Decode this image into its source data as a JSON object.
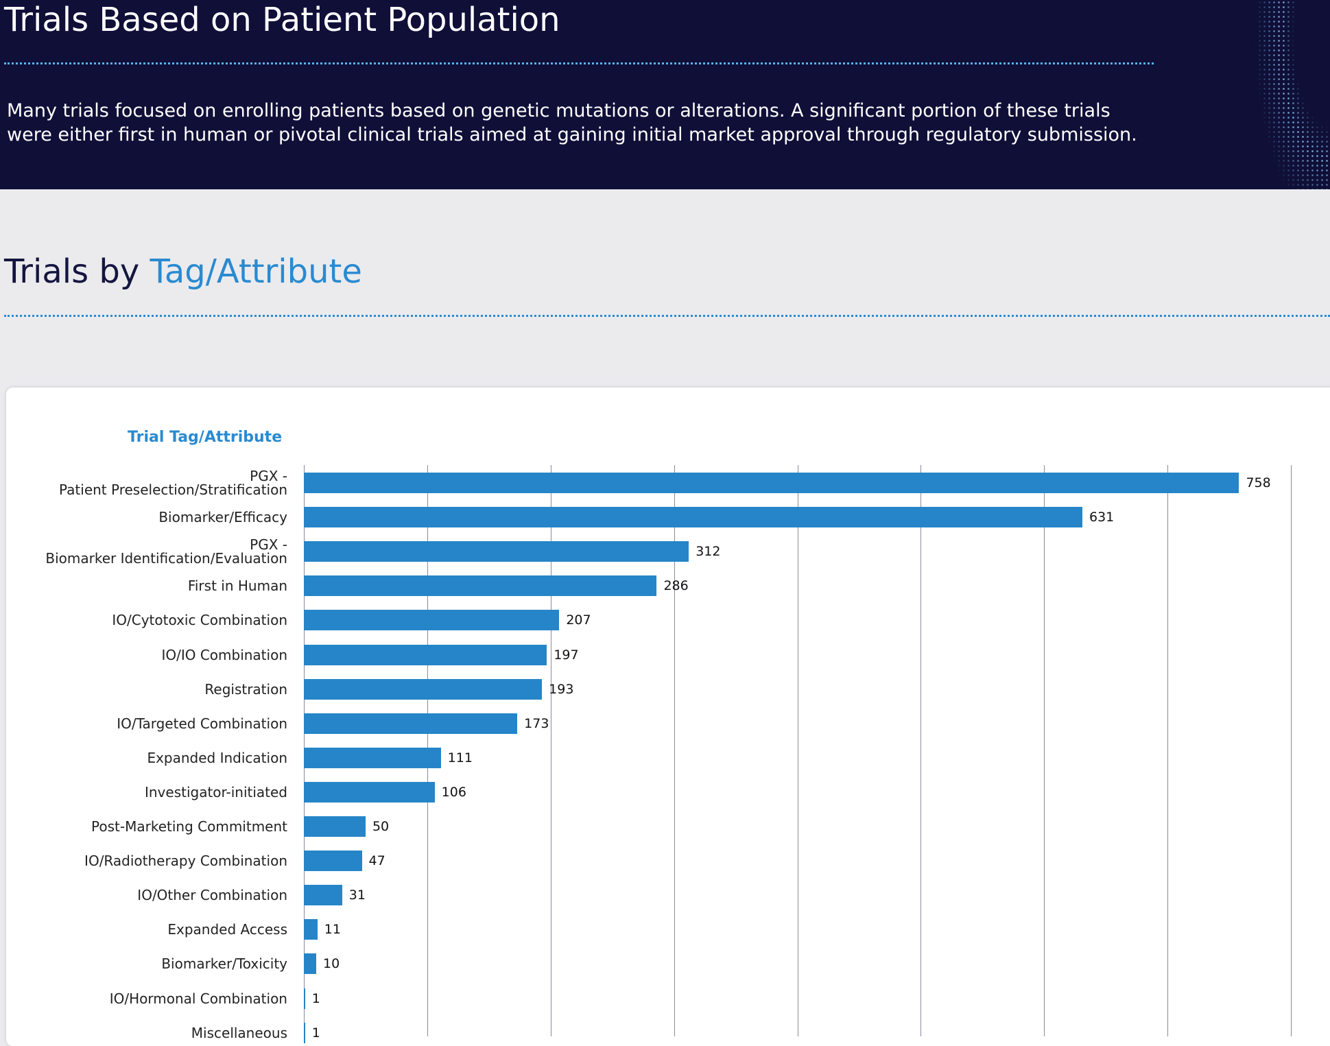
{
  "header": {
    "title": "Trials Based on Patient Population",
    "text": "Many trials focused on enrolling patients based on genetic mutations or alterations. A significant portion of these trials\nwere either first in human or pivotal clinical trials aimed at gaining initial market approval through regulatory submission."
  },
  "section": {
    "title_prefix": "Trials by",
    "title_highlight": "Tag/Attribute"
  },
  "chart_data": {
    "type": "hbar",
    "title": "Trial Tag/Attribute",
    "color": "#2585c8",
    "grid": true,
    "categories": [
      "PGX -\nPatient Preselection/Stratification",
      "Biomarker/Efficacy",
      "PGX -\nBiomarker Identification/Evaluation",
      "First in Human",
      "IO/Cytotoxic Combination",
      "IO/IO Combination",
      "Registration",
      "IO/Targeted Combination",
      "Expanded Indication",
      "Investigator-initiated",
      "Post-Marketing Commitment",
      "IO/Radiotherapy Combination",
      "IO/Other Combination",
      "Expanded Access",
      "Biomarker/Toxicity",
      "IO/Hormonal Combination",
      "Miscellaneous"
    ],
    "values": [
      758,
      631,
      312,
      286,
      207,
      197,
      193,
      173,
      111,
      106,
      50,
      47,
      31,
      11,
      10,
      1,
      1
    ],
    "xlim": [
      0,
      800
    ],
    "xticks": [
      0,
      100,
      200,
      300,
      400,
      500,
      600,
      700,
      800
    ]
  }
}
